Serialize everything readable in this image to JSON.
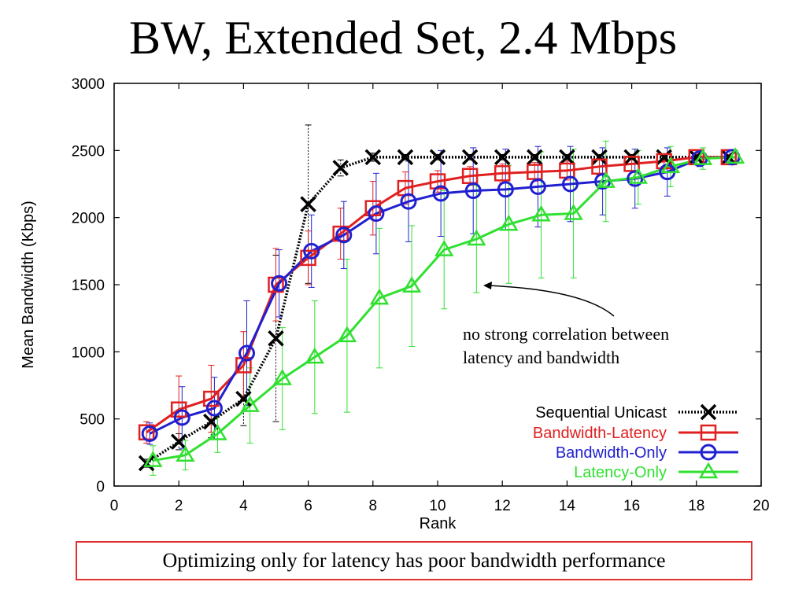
{
  "slide": {
    "title": "BW, Extended Set, 2.4 Mbps",
    "annotation_line1": "no strong correlation between",
    "annotation_line2": "latency and bandwidth",
    "footer": "Optimizing only for latency has poor bandwidth performance"
  },
  "chart_data": {
    "type": "line",
    "xlabel": "Rank",
    "ylabel": "Mean Bandwidth (Kbps)",
    "xlim": [
      0,
      20
    ],
    "ylim": [
      0,
      3000
    ],
    "xticks": [
      0,
      2,
      4,
      6,
      8,
      10,
      12,
      14,
      16,
      18,
      20
    ],
    "yticks": [
      0,
      500,
      1000,
      1500,
      2000,
      2500,
      3000
    ],
    "grid": false,
    "legend_position": "bottom-right",
    "series": [
      {
        "name": "Sequential Unicast",
        "color": "#000000",
        "line_style": "dotted",
        "marker": "x",
        "x": [
          1,
          2,
          3,
          4,
          5,
          6,
          7,
          8,
          9,
          10,
          11,
          12,
          13,
          14,
          15,
          16,
          17,
          18,
          19
        ],
        "y": [
          170,
          330,
          480,
          650,
          1100,
          2100,
          2370,
          2450,
          2450,
          2450,
          2450,
          2450,
          2450,
          2450,
          2450,
          2450,
          2450,
          2450,
          2450
        ],
        "err": [
          30,
          60,
          120,
          200,
          620,
          590,
          60,
          30,
          20,
          20,
          20,
          20,
          20,
          20,
          20,
          20,
          20,
          20,
          20
        ]
      },
      {
        "name": "Bandwidth-Latency",
        "color": "#e02020",
        "line_style": "solid",
        "marker": "square",
        "x": [
          1,
          2,
          3,
          4,
          5,
          6,
          7,
          8,
          9,
          10,
          11,
          12,
          13,
          14,
          15,
          16,
          17,
          18,
          19
        ],
        "y": [
          400,
          570,
          650,
          900,
          1500,
          1700,
          1880,
          2070,
          2220,
          2270,
          2310,
          2330,
          2340,
          2350,
          2380,
          2400,
          2420,
          2450,
          2450
        ],
        "err": [
          80,
          250,
          250,
          250,
          270,
          200,
          190,
          200,
          120,
          80,
          70,
          70,
          70,
          70,
          60,
          50,
          40,
          30,
          20
        ]
      },
      {
        "name": "Bandwidth-Only",
        "color": "#2020d0",
        "line_style": "solid",
        "marker": "circle",
        "x": [
          1.1,
          2.1,
          3.1,
          4.1,
          5.1,
          6.1,
          7.1,
          8.1,
          9.1,
          10.1,
          11.1,
          12.1,
          13.1,
          14.1,
          15.1,
          16.1,
          17.1,
          18.1,
          19.1
        ],
        "y": [
          390,
          510,
          580,
          990,
          1510,
          1750,
          1870,
          2030,
          2120,
          2180,
          2200,
          2210,
          2230,
          2250,
          2270,
          2290,
          2340,
          2440,
          2450
        ],
        "err": [
          80,
          230,
          230,
          390,
          250,
          270,
          250,
          300,
          300,
          320,
          320,
          300,
          300,
          280,
          250,
          220,
          180,
          60,
          30
        ]
      },
      {
        "name": "Latency-Only",
        "color": "#30e030",
        "line_style": "solid",
        "marker": "triangle",
        "x": [
          1.2,
          2.2,
          3.2,
          4.2,
          5.2,
          6.2,
          7.2,
          8.2,
          9.2,
          10.2,
          11.2,
          12.2,
          13.2,
          14.2,
          15.2,
          16.2,
          17.2,
          18.2,
          19.2
        ],
        "y": [
          190,
          230,
          390,
          600,
          800,
          960,
          1120,
          1400,
          1490,
          1760,
          1840,
          1950,
          2020,
          2030,
          2270,
          2300,
          2380,
          2440,
          2450
        ],
        "err": [
          110,
          110,
          140,
          280,
          380,
          420,
          570,
          520,
          450,
          440,
          400,
          440,
          470,
          480,
          300,
          200,
          150,
          80,
          50
        ]
      }
    ]
  }
}
